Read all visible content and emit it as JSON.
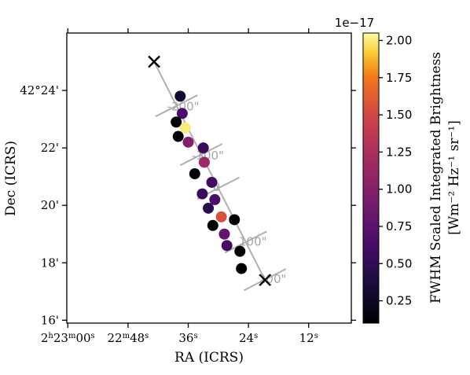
{
  "chart_data": {
    "type": "scatter",
    "xlabel": "RA (ICRS)",
    "ylabel": "Dec (ICRS)",
    "x_ticks": [
      {
        "value_s": 0,
        "base": "2",
        "h": "h",
        "mid": "23",
        "m": "m",
        "sec": "00",
        "s": "s"
      },
      {
        "value_s": 12,
        "base": "22",
        "h": "",
        "mid": "",
        "m": "m",
        "sec": "48",
        "s": "s"
      },
      {
        "value_s": 24,
        "base": "36",
        "h": "",
        "mid": "",
        "m": "",
        "sec": "",
        "s": "s"
      },
      {
        "value_s": 36,
        "base": "24",
        "h": "",
        "mid": "",
        "m": "",
        "sec": "",
        "s": "s"
      },
      {
        "value_s": 48,
        "base": "12",
        "h": "",
        "mid": "",
        "m": "",
        "sec": "",
        "s": "s"
      }
    ],
    "y_ticks": [
      {
        "value_arcmin": 16,
        "label": "16'"
      },
      {
        "value_arcmin": 18,
        "label": "18'"
      },
      {
        "value_arcmin": 20,
        "label": "20'"
      },
      {
        "value_arcmin": 22,
        "label": "22'"
      },
      {
        "value_arcmin": 24,
        "label": "42°24'"
      }
    ],
    "xlim_s": [
      -0.2,
      56.5
    ],
    "ylim_arcmin": [
      15.9,
      26.0
    ],
    "end_markers": [
      {
        "x_s": 17.2,
        "y_arcmin": 25.0
      },
      {
        "x_s": 39.3,
        "y_arcmin": 17.4
      }
    ],
    "offset_labels": [
      {
        "label": "-200\"",
        "x_s": 19.8,
        "y_arcmin": 23.3
      },
      {
        "label": "-100\"",
        "x_s": 24.7,
        "y_arcmin": 21.6
      },
      {
        "label": "0",
        "x_s": 28.9,
        "y_arcmin": 20.5
      },
      {
        "label": "100\"",
        "x_s": 34.1,
        "y_arcmin": 18.6
      },
      {
        "label": "200\"",
        "x_s": 38.0,
        "y_arcmin": 17.3
      }
    ],
    "points": [
      {
        "x_s": 22.4,
        "y_arcmin": 23.8,
        "v": 0.3
      },
      {
        "x_s": 22.8,
        "y_arcmin": 23.2,
        "v": 0.65
      },
      {
        "x_s": 21.6,
        "y_arcmin": 22.9,
        "v": 0.12
      },
      {
        "x_s": 23.4,
        "y_arcmin": 22.7,
        "v": 2.0
      },
      {
        "x_s": 22.0,
        "y_arcmin": 22.4,
        "v": 0.12
      },
      {
        "x_s": 24.0,
        "y_arcmin": 22.2,
        "v": 1.0
      },
      {
        "x_s": 27.0,
        "y_arcmin": 22.0,
        "v": 0.55
      },
      {
        "x_s": 27.2,
        "y_arcmin": 21.5,
        "v": 1.15
      },
      {
        "x_s": 25.3,
        "y_arcmin": 21.1,
        "v": 0.12
      },
      {
        "x_s": 28.7,
        "y_arcmin": 20.8,
        "v": 0.6
      },
      {
        "x_s": 26.8,
        "y_arcmin": 20.4,
        "v": 0.55
      },
      {
        "x_s": 29.3,
        "y_arcmin": 20.2,
        "v": 0.65
      },
      {
        "x_s": 28.0,
        "y_arcmin": 19.9,
        "v": 0.45
      },
      {
        "x_s": 30.6,
        "y_arcmin": 19.6,
        "v": 1.55
      },
      {
        "x_s": 33.2,
        "y_arcmin": 19.5,
        "v": 0.1
      },
      {
        "x_s": 28.9,
        "y_arcmin": 19.3,
        "v": 0.1
      },
      {
        "x_s": 31.2,
        "y_arcmin": 19.0,
        "v": 0.8
      },
      {
        "x_s": 31.7,
        "y_arcmin": 18.6,
        "v": 0.6
      },
      {
        "x_s": 34.3,
        "y_arcmin": 18.4,
        "v": 0.1
      },
      {
        "x_s": 34.6,
        "y_arcmin": 17.8,
        "v": 0.1
      }
    ]
  },
  "colorbar": {
    "title": "FWHM Scaled Integrated Brightness",
    "units_line": "[Wm⁻² Hz⁻¹ sr⁻¹]",
    "scale_label": "1e−17",
    "vmin": 0.1,
    "vmax": 2.05,
    "ticks": [
      {
        "value": 0.25,
        "label": "0.25"
      },
      {
        "value": 0.5,
        "label": "0.50"
      },
      {
        "value": 0.75,
        "label": "0.75"
      },
      {
        "value": 1.0,
        "label": "1.00"
      },
      {
        "value": 1.25,
        "label": "1.25"
      },
      {
        "value": 1.5,
        "label": "1.50"
      },
      {
        "value": 1.75,
        "label": "1.75"
      },
      {
        "value": 2.0,
        "label": "2.00"
      }
    ],
    "colormap": "inferno"
  }
}
